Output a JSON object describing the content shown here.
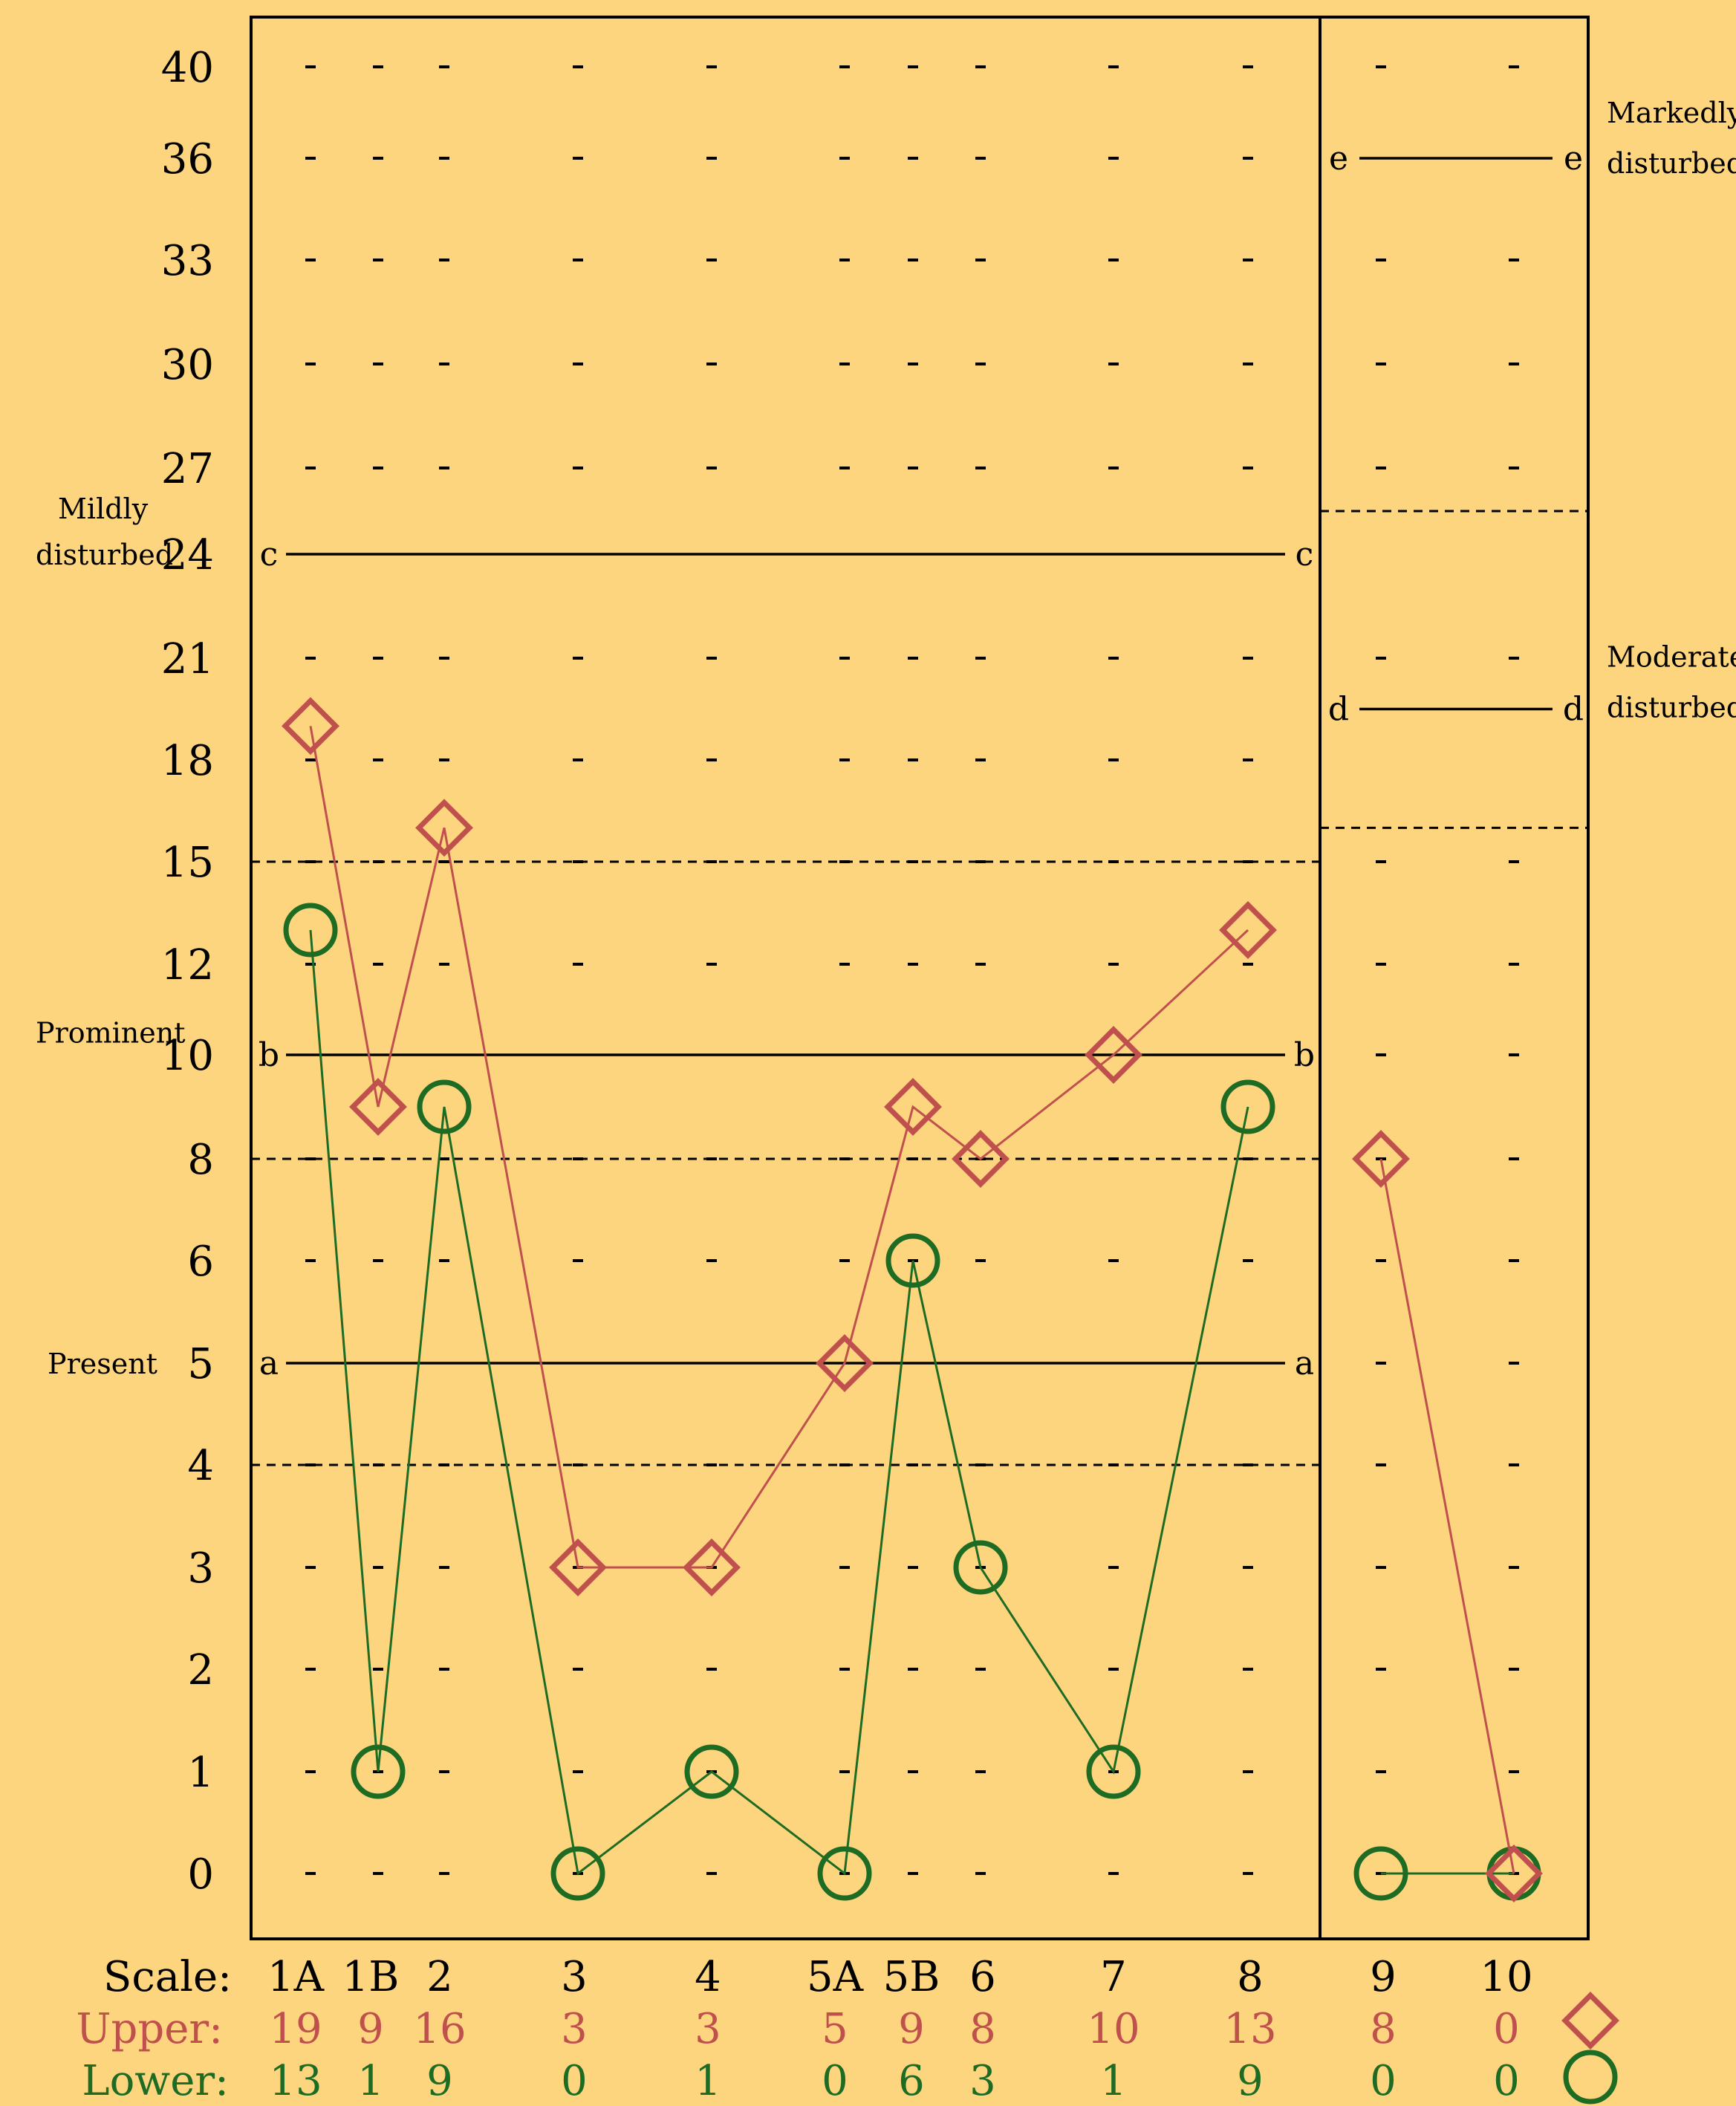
{
  "colors": {
    "background": "#fdd57e",
    "upper": "#c0504d",
    "lower": "#1e6b24",
    "upper_text": "#c0504d",
    "lower_text": "#1e6b24",
    "axis": "#000000"
  },
  "chart_data": {
    "type": "line",
    "y_ticks": [
      "0",
      "1",
      "2",
      "3",
      "4",
      "5",
      "6",
      "8",
      "10",
      "12",
      "15",
      "18",
      "21",
      "24",
      "27",
      "30",
      "33",
      "36",
      "40"
    ],
    "categories": [
      "1A",
      "1B",
      "2",
      "3",
      "4",
      "5A",
      "5B",
      "6",
      "7",
      "8",
      "9",
      "10"
    ],
    "series": [
      {
        "name": "Upper",
        "marker": "diamond",
        "values": [
          19,
          9,
          16,
          3,
          3,
          5,
          9,
          8,
          10,
          13,
          8,
          0
        ]
      },
      {
        "name": "Lower",
        "marker": "circle",
        "values": [
          13,
          1,
          9,
          0,
          1,
          0,
          6,
          3,
          1,
          9,
          0,
          0
        ]
      }
    ],
    "reference_lines": [
      {
        "label": "a",
        "value": 5,
        "panel": "left"
      },
      {
        "label": "b",
        "value": 10,
        "panel": "left"
      },
      {
        "label": "c",
        "value": 24,
        "panel": "left"
      },
      {
        "label": "d",
        "value": 19.5,
        "panel": "right"
      },
      {
        "label": "e",
        "value": 36,
        "panel": "right"
      }
    ],
    "dashed_boundaries": [
      {
        "value": 4,
        "panel": "left"
      },
      {
        "value": 8,
        "panel": "left"
      },
      {
        "value": 15,
        "panel": "left"
      },
      {
        "value": 16,
        "panel": "right"
      },
      {
        "value": 25.5,
        "panel": "right"
      }
    ],
    "zone_labels_left": [
      {
        "lines": [
          "Present"
        ],
        "value": 5
      },
      {
        "lines": [
          "Prominent"
        ],
        "value": 10.5
      },
      {
        "lines": [
          "Mildly",
          "disturbed"
        ],
        "value": 24
      }
    ],
    "zone_labels_right": [
      {
        "lines": [
          "Moderate",
          "disturbed"
        ],
        "value": 19.7
      },
      {
        "lines": [
          "Markedly",
          "disturbed"
        ],
        "value": 36
      }
    ],
    "footer": {
      "scale_label": "Scale:",
      "upper_label": "Upper:",
      "lower_label": "Lower:",
      "upper_values": [
        "19",
        "9",
        "16",
        "3",
        "3",
        "5",
        "9",
        "8",
        "10",
        "13",
        "8",
        "0"
      ],
      "lower_values": [
        "13",
        "1",
        "9",
        "0",
        "1",
        "0",
        "6",
        "3",
        "1",
        "9",
        "0",
        "0"
      ]
    }
  }
}
